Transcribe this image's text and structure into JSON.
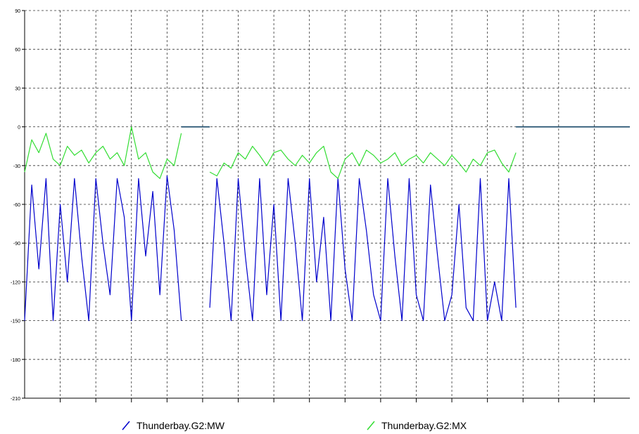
{
  "chart_data": {
    "type": "line",
    "ylim": [
      -210,
      90
    ],
    "y_ticks": [
      90,
      60,
      30,
      0,
      -30,
      -60,
      -90,
      -120,
      -150,
      -180,
      -210
    ],
    "x_divisions": 17,
    "grid": true,
    "legend_position": "bottom",
    "x": [
      0,
      2,
      4,
      6,
      8,
      10,
      12,
      14,
      16,
      18,
      20,
      22,
      24,
      26,
      28,
      30,
      32,
      34,
      36,
      38,
      40,
      42,
      44,
      46,
      48,
      50,
      52,
      54,
      56,
      58,
      60,
      62,
      64,
      66,
      68,
      70,
      72,
      74,
      76,
      78,
      80,
      82,
      84,
      86,
      88,
      90,
      92,
      94,
      96,
      98,
      100,
      102,
      104,
      106,
      108,
      110,
      112,
      114,
      116,
      118,
      120,
      122,
      124,
      126,
      128,
      130,
      132,
      134,
      136,
      138,
      140,
      142,
      144,
      146,
      148,
      150,
      152,
      154,
      156,
      158,
      160,
      162,
      164,
      166,
      168,
      170
    ],
    "series": [
      {
        "name": "Thunderbay.G2:MW",
        "color": "#0000cc",
        "values": [
          -150,
          -45,
          -110,
          -40,
          -150,
          -60,
          -120,
          -40,
          -100,
          -150,
          -40,
          -90,
          -130,
          -40,
          -70,
          -150,
          -40,
          -100,
          -50,
          -130,
          -38,
          -80,
          -150,
          -40,
          -110,
          -60,
          -140,
          -40,
          -90,
          -150,
          -40,
          -100,
          -150,
          -40,
          -130,
          -60,
          -150,
          -40,
          -90,
          -150,
          -40,
          -120,
          -70,
          -150,
          -40,
          -110,
          -150,
          -40,
          -80,
          -130,
          -150,
          -40,
          -100,
          -150,
          -40,
          -130,
          -150,
          -45,
          -100,
          -150,
          -130,
          -60,
          -140,
          -150,
          -40,
          -150,
          -120,
          -150,
          -40,
          -140,
          -150,
          -40,
          -130,
          -150,
          -40,
          -150,
          -60,
          -150,
          -40,
          -140,
          -150,
          -40,
          -140,
          -135,
          -140,
          -138
        ],
        "gaps": [
          [
            44,
            52
          ],
          [
            138,
            170
          ]
        ],
        "flat_segments": [
          [
            44,
            52,
            0
          ],
          [
            138,
            170,
            0
          ]
        ]
      },
      {
        "name": "Thunderbay.G2:MX",
        "color": "#33dd33",
        "values": [
          -35,
          -10,
          -20,
          -5,
          -25,
          -30,
          -15,
          -22,
          -18,
          -28,
          -20,
          -15,
          -25,
          -20,
          -30,
          0,
          -25,
          -20,
          -35,
          -40,
          -25,
          -30,
          -5,
          -30,
          -40,
          -20,
          -35,
          -38,
          -28,
          -32,
          -20,
          -25,
          -15,
          -22,
          -30,
          -20,
          -18,
          -25,
          -30,
          -22,
          -28,
          -20,
          -15,
          -35,
          -40,
          -25,
          -20,
          -30,
          -18,
          -22,
          -28,
          -25,
          -20,
          -30,
          -25,
          -22,
          -28,
          -20,
          -25,
          -30,
          -22,
          -28,
          -35,
          -25,
          -30,
          -20,
          -18,
          -28,
          -35,
          -20,
          -30,
          -38,
          -25,
          -30,
          -40,
          -35,
          -28,
          -32,
          -38,
          -30,
          -45,
          -30,
          -25,
          -20,
          -15,
          -30
        ],
        "gaps": [
          [
            44,
            52
          ],
          [
            138,
            170
          ]
        ],
        "flat_segments": [
          [
            44,
            52,
            0
          ],
          [
            138,
            170,
            0
          ]
        ]
      }
    ]
  },
  "legend": {
    "items": [
      {
        "label": "Thunderbay.G2:MW",
        "color": "#0000cc"
      },
      {
        "label": "Thunderbay.G2:MX",
        "color": "#33dd33"
      }
    ]
  }
}
